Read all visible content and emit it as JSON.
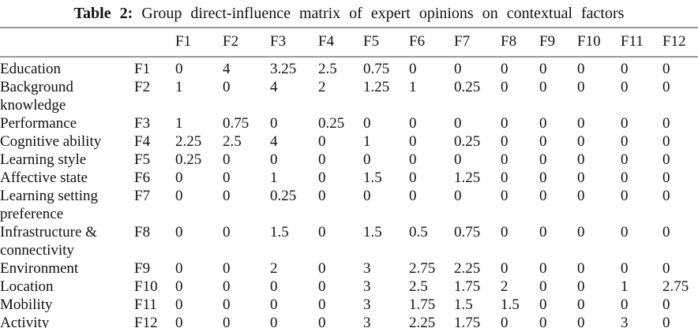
{
  "caption": {
    "label": "Table 2:",
    "text": "Group direct-influence matrix of expert opinions on contextual factors"
  },
  "table": {
    "column_headers": [
      "",
      "",
      "F1",
      "F2",
      "F3",
      "F4",
      "F5",
      "F6",
      "F7",
      "F8",
      "F9",
      "F10",
      "F11",
      "F12"
    ],
    "rows": [
      {
        "name": "Education",
        "code": "F1",
        "values": [
          "0",
          "4",
          "3.25",
          "2.5",
          "0.75",
          "0",
          "0",
          "0",
          "0",
          "0",
          "0",
          "0"
        ]
      },
      {
        "name": "Background knowledge",
        "code": "F2",
        "values": [
          "1",
          "0",
          "4",
          "2",
          "1.25",
          "1",
          "0.25",
          "0",
          "0",
          "0",
          "0",
          "0"
        ]
      },
      {
        "name": "Performance",
        "code": "F3",
        "values": [
          "1",
          "0.75",
          "0",
          "0.25",
          "0",
          "0",
          "0",
          "0",
          "0",
          "0",
          "0",
          "0"
        ]
      },
      {
        "name": "Cognitive ability",
        "code": "F4",
        "values": [
          "2.25",
          "2.5",
          "4",
          "0",
          "1",
          "0",
          "0.25",
          "0",
          "0",
          "0",
          "0",
          "0"
        ]
      },
      {
        "name": "Learning style",
        "code": "F5",
        "values": [
          "0.25",
          "0",
          "0",
          "0",
          "0",
          "0",
          "0",
          "0",
          "0",
          "0",
          "0",
          "0"
        ]
      },
      {
        "name": "Affective state",
        "code": "F6",
        "values": [
          "0",
          "0",
          "1",
          "0",
          "1.5",
          "0",
          "1.25",
          "0",
          "0",
          "0",
          "0",
          "0"
        ]
      },
      {
        "name": "Learning setting preference",
        "code": "F7",
        "values": [
          "0",
          "0",
          "0.25",
          "0",
          "0",
          "0",
          "0",
          "0",
          "0",
          "0",
          "0",
          "0"
        ]
      },
      {
        "name": "Infrastructure & connectivity",
        "code": "F8",
        "values": [
          "0",
          "0",
          "1.5",
          "0",
          "1.5",
          "0.5",
          "0.75",
          "0",
          "0",
          "0",
          "0",
          "0"
        ]
      },
      {
        "name": "Environment",
        "code": "F9",
        "values": [
          "0",
          "0",
          "2",
          "0",
          "3",
          "2.75",
          "2.25",
          "0",
          "0",
          "0",
          "0",
          "0"
        ]
      },
      {
        "name": "Location",
        "code": "F10",
        "values": [
          "0",
          "0",
          "0",
          "0",
          "3",
          "2.5",
          "1.75",
          "2",
          "0",
          "0",
          "1",
          "2.75"
        ]
      },
      {
        "name": "Mobility",
        "code": "F11",
        "values": [
          "0",
          "0",
          "0",
          "0",
          "3",
          "1.75",
          "1.5",
          "1.5",
          "0",
          "0",
          "0",
          "0"
        ]
      },
      {
        "name": "Activity",
        "code": "F12",
        "values": [
          "0",
          "0",
          "0",
          "0",
          "3",
          "2.25",
          "1.75",
          "0",
          "0",
          "0",
          "3",
          "0"
        ]
      }
    ]
  },
  "colors": {
    "background": "#ffffff",
    "text": "#111111",
    "rule": "#9a9a9a"
  }
}
